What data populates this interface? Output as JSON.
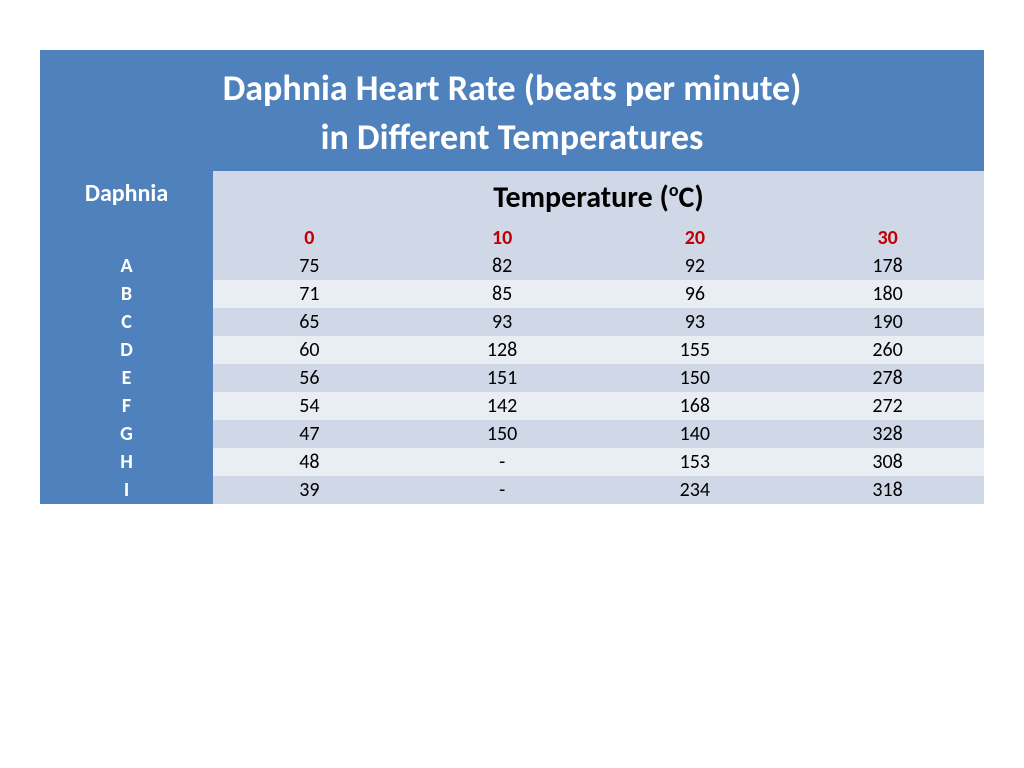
{
  "title": {
    "line1": "Daphnia Heart Rate (beats per minute)",
    "line2": "in Different Temperatures"
  },
  "headers": {
    "row_label": "Daphnia",
    "temp_label_prefix": "Temperature (",
    "temp_label_sup": "o",
    "temp_label_suffix": "C)"
  },
  "temp_columns": [
    "0",
    "10",
    "20",
    "30"
  ],
  "rows": [
    {
      "label": "A",
      "values": [
        "75",
        "82",
        "92",
        "178"
      ]
    },
    {
      "label": "B",
      "values": [
        "71",
        "85",
        "96",
        "180"
      ]
    },
    {
      "label": "C",
      "values": [
        "65",
        "93",
        "93",
        "190"
      ]
    },
    {
      "label": "D",
      "values": [
        "60",
        "128",
        "155",
        "260"
      ]
    },
    {
      "label": "E",
      "values": [
        "56",
        "151",
        "150",
        "278"
      ]
    },
    {
      "label": "F",
      "values": [
        "54",
        "142",
        "168",
        "272"
      ]
    },
    {
      "label": "G",
      "values": [
        "47",
        "150",
        "140",
        "328"
      ]
    },
    {
      "label": "H",
      "values": [
        "48",
        "-",
        "153",
        "308"
      ]
    },
    {
      "label": "I",
      "values": [
        "39",
        "-",
        "234",
        "318"
      ]
    }
  ],
  "style": {
    "title_bg": "#4f81bd",
    "title_color": "#ffffff",
    "header_bg": "#d0d8e8",
    "temp_value_color": "#c00000",
    "row_label_bg": "#4f81bd",
    "row_label_color": "#ffffff",
    "band_light": "#e9edf4",
    "band_dark": "#d0d8e8",
    "cell_color": "#000000",
    "title_fontsize": 36,
    "header_fontsize": 30,
    "cell_fontsize": 20
  }
}
